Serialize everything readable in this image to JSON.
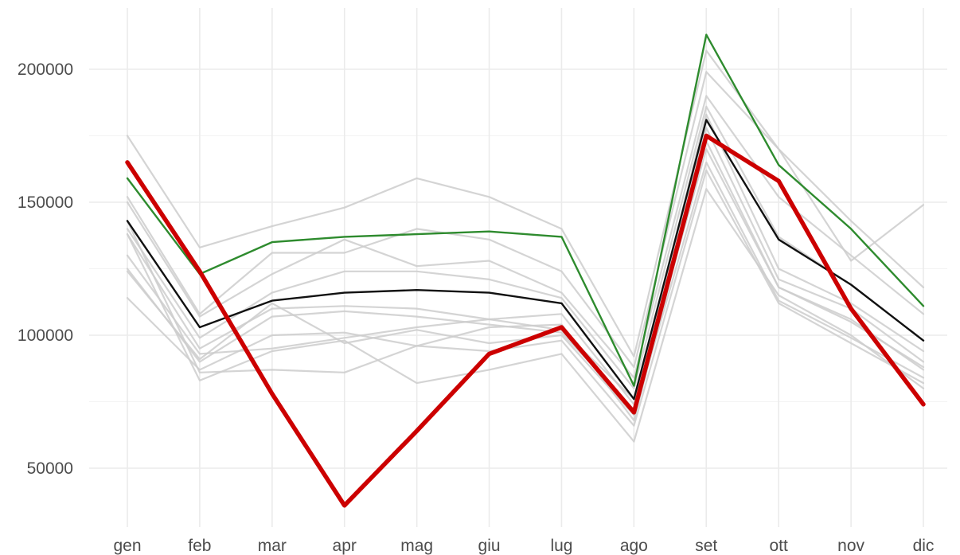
{
  "chart_data": {
    "type": "line",
    "title": "",
    "xlabel": "",
    "ylabel": "",
    "categories": [
      "gen",
      "feb",
      "mar",
      "apr",
      "mag",
      "giu",
      "lug",
      "ago",
      "set",
      "ott",
      "nov",
      "dic"
    ],
    "ylim": [
      30000,
      220000
    ],
    "yticks": [
      50000,
      100000,
      150000,
      200000
    ],
    "ytick_labels": [
      "50000",
      "100000",
      "150000",
      "200000"
    ],
    "grid": true,
    "legend": "none",
    "series": [
      {
        "color": "#cccccc",
        "role": "background",
        "values": [
          175000,
          133000,
          141000,
          148000,
          159000,
          152000,
          140000,
          92000,
          207000,
          170000,
          128000,
          149000
        ]
      },
      {
        "color": "#cccccc",
        "role": "background",
        "values": [
          152000,
          108000,
          131000,
          131000,
          140000,
          136000,
          124000,
          88000,
          199000,
          170000,
          143000,
          118000
        ]
      },
      {
        "color": "#cccccc",
        "role": "background",
        "values": [
          150000,
          107000,
          123000,
          136000,
          126000,
          128000,
          116000,
          84000,
          190000,
          152000,
          130000,
          108000
        ]
      },
      {
        "color": "#cccccc",
        "role": "background",
        "values": [
          140000,
          99000,
          116000,
          124000,
          124000,
          121000,
          114000,
          80000,
          186000,
          137000,
          119000,
          98000
        ]
      },
      {
        "color": "#cccccc",
        "role": "background",
        "values": [
          138000,
          95000,
          110000,
          111000,
          110000,
          106000,
          102000,
          76000,
          178000,
          121000,
          110000,
          90000
        ]
      },
      {
        "color": "#cccccc",
        "role": "background",
        "values": [
          125000,
          90000,
          107000,
          109000,
          107000,
          104000,
          101000,
          72000,
          170000,
          118000,
          106000,
          87000
        ]
      },
      {
        "color": "#cccccc",
        "role": "background",
        "values": [
          124000,
          91000,
          112000,
          97000,
          102000,
          97000,
          100000,
          70000,
          165000,
          113000,
          99000,
          84000
        ]
      },
      {
        "color": "#cccccc",
        "role": "background",
        "values": [
          114000,
          87000,
          100000,
          101000,
          96000,
          94000,
          98000,
          66000,
          162000,
          112000,
          97000,
          82000
        ]
      },
      {
        "color": "#cccccc",
        "role": "background",
        "values": [
          138000,
          83000,
          94000,
          98000,
          82000,
          87000,
          93000,
          60000,
          155000,
          115000,
          100000,
          80000
        ]
      },
      {
        "color": "#cccccc",
        "role": "background",
        "values": [
          143000,
          86000,
          87000,
          86000,
          96000,
          103000,
          104000,
          68000,
          173000,
          118000,
          105000,
          88000
        ]
      },
      {
        "color": "#cccccc",
        "role": "background",
        "values": [
          130000,
          93000,
          95000,
          99000,
          103000,
          106000,
          108000,
          74000,
          183000,
          125000,
          112000,
          94000
        ]
      },
      {
        "color": "#2e8b2e",
        "role": "highlight",
        "values": [
          159000,
          123000,
          135000,
          137000,
          138000,
          139000,
          137000,
          81000,
          213000,
          164000,
          140000,
          111000
        ]
      },
      {
        "color": "#111111",
        "role": "highlight",
        "values": [
          143000,
          103000,
          113000,
          116000,
          117000,
          116000,
          112000,
          76000,
          181000,
          136000,
          119000,
          98000
        ]
      },
      {
        "color": "#cc0000",
        "role": "highlight",
        "values": [
          165000,
          124000,
          78000,
          36000,
          64000,
          93000,
          103000,
          71000,
          175000,
          158000,
          110000,
          74000
        ]
      }
    ]
  }
}
